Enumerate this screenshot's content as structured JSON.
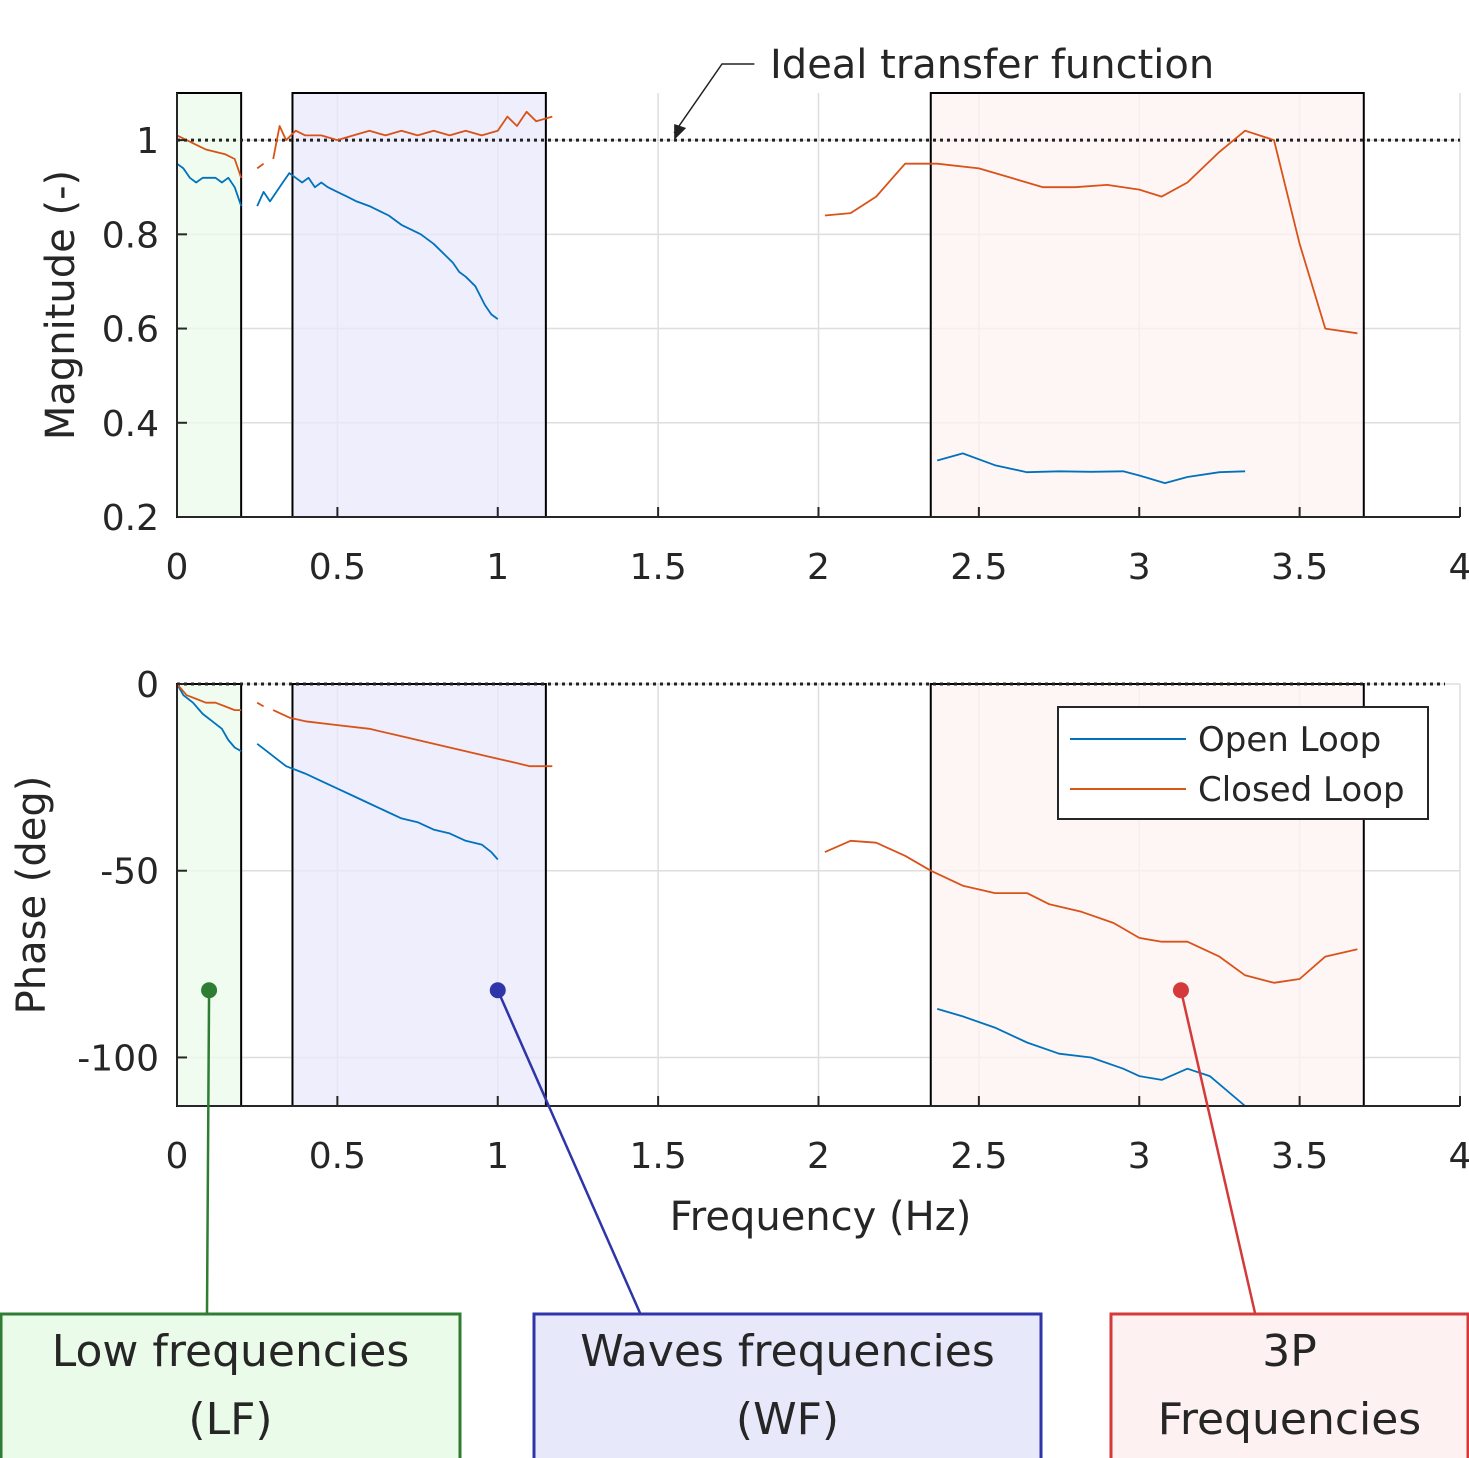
{
  "chart_data": [
    {
      "type": "line",
      "ylabel": "Magnitude (-)",
      "xlim": [
        0,
        4
      ],
      "ylim": [
        0.2,
        1.1
      ],
      "xticks": [
        "0",
        "0.5",
        "1",
        "1.5",
        "2",
        "2.5",
        "3",
        "3.5",
        "4"
      ],
      "yticks": [
        "0.2",
        "0.4",
        "0.6",
        "0.8",
        "1"
      ],
      "grid": true,
      "reference_line": {
        "y": 1,
        "label": "Ideal transfer function"
      },
      "series": [
        {
          "name": "Open Loop",
          "color": "#0072BD",
          "segments": [
            [
              [
                0.0,
                0.95
              ],
              [
                0.02,
                0.94
              ],
              [
                0.04,
                0.92
              ],
              [
                0.06,
                0.91
              ],
              [
                0.08,
                0.92
              ],
              [
                0.1,
                0.92
              ],
              [
                0.12,
                0.92
              ],
              [
                0.14,
                0.91
              ],
              [
                0.16,
                0.92
              ],
              [
                0.18,
                0.9
              ],
              [
                0.2,
                0.86
              ]
            ],
            [
              [
                0.25,
                0.86
              ],
              [
                0.27,
                0.89
              ],
              [
                0.29,
                0.87
              ],
              [
                0.31,
                0.89
              ],
              [
                0.33,
                0.91
              ],
              [
                0.35,
                0.93
              ],
              [
                0.37,
                0.92
              ],
              [
                0.39,
                0.91
              ],
              [
                0.41,
                0.92
              ],
              [
                0.43,
                0.9
              ],
              [
                0.45,
                0.91
              ],
              [
                0.47,
                0.9
              ],
              [
                0.5,
                0.89
              ],
              [
                0.53,
                0.88
              ],
              [
                0.56,
                0.87
              ],
              [
                0.6,
                0.86
              ],
              [
                0.63,
                0.85
              ],
              [
                0.66,
                0.84
              ],
              [
                0.7,
                0.82
              ],
              [
                0.73,
                0.81
              ],
              [
                0.76,
                0.8
              ],
              [
                0.8,
                0.78
              ],
              [
                0.83,
                0.76
              ],
              [
                0.86,
                0.74
              ],
              [
                0.88,
                0.72
              ],
              [
                0.9,
                0.71
              ],
              [
                0.93,
                0.69
              ],
              [
                0.96,
                0.65
              ],
              [
                0.98,
                0.63
              ],
              [
                1.0,
                0.62
              ]
            ],
            [
              [
                2.37,
                0.32
              ],
              [
                2.45,
                0.335
              ],
              [
                2.55,
                0.31
              ],
              [
                2.65,
                0.295
              ],
              [
                2.75,
                0.297
              ],
              [
                2.85,
                0.296
              ],
              [
                2.95,
                0.297
              ],
              [
                3.0,
                0.288
              ],
              [
                3.08,
                0.272
              ],
              [
                3.15,
                0.285
              ],
              [
                3.25,
                0.295
              ],
              [
                3.33,
                0.297
              ]
            ]
          ]
        },
        {
          "name": "Closed Loop",
          "color": "#D95319",
          "segments": [
            [
              [
                0.0,
                1.01
              ],
              [
                0.03,
                1.0
              ],
              [
                0.06,
                0.99
              ],
              [
                0.09,
                0.98
              ],
              [
                0.12,
                0.975
              ],
              [
                0.15,
                0.97
              ],
              [
                0.18,
                0.96
              ],
              [
                0.2,
                0.92
              ]
            ],
            [
              [
                0.25,
                0.94
              ],
              [
                0.27,
                0.95
              ]
            ],
            [
              [
                0.3,
                0.96
              ],
              [
                0.32,
                1.03
              ],
              [
                0.34,
                1.0
              ],
              [
                0.37,
                1.02
              ],
              [
                0.4,
                1.01
              ],
              [
                0.45,
                1.01
              ],
              [
                0.5,
                1.0
              ],
              [
                0.55,
                1.01
              ],
              [
                0.6,
                1.02
              ],
              [
                0.65,
                1.01
              ],
              [
                0.7,
                1.02
              ],
              [
                0.75,
                1.01
              ],
              [
                0.8,
                1.02
              ],
              [
                0.85,
                1.01
              ],
              [
                0.9,
                1.02
              ],
              [
                0.95,
                1.01
              ],
              [
                1.0,
                1.02
              ],
              [
                1.03,
                1.05
              ],
              [
                1.06,
                1.03
              ],
              [
                1.09,
                1.06
              ],
              [
                1.12,
                1.04
              ],
              [
                1.17,
                1.05
              ]
            ],
            [
              [
                2.02,
                0.84
              ],
              [
                2.1,
                0.845
              ],
              [
                2.18,
                0.88
              ],
              [
                2.27,
                0.95
              ],
              [
                2.37,
                0.95
              ],
              [
                2.5,
                0.94
              ],
              [
                2.6,
                0.92
              ],
              [
                2.7,
                0.9
              ],
              [
                2.8,
                0.9
              ],
              [
                2.9,
                0.905
              ],
              [
                3.0,
                0.895
              ],
              [
                3.07,
                0.88
              ],
              [
                3.15,
                0.91
              ],
              [
                3.25,
                0.975
              ],
              [
                3.33,
                1.02
              ],
              [
                3.42,
                1.0
              ],
              [
                3.5,
                0.78
              ],
              [
                3.58,
                0.6
              ],
              [
                3.68,
                0.59
              ]
            ]
          ]
        }
      ]
    },
    {
      "type": "line",
      "ylabel": "Phase (deg)",
      "xlabel": "Frequency (Hz)",
      "xlim": [
        0,
        4
      ],
      "ylim": [
        -113,
        0
      ],
      "xticks": [
        "0",
        "0.5",
        "1",
        "1.5",
        "2",
        "2.5",
        "3",
        "3.5",
        "4"
      ],
      "yticks": [
        "-100",
        "-50",
        "0"
      ],
      "grid": true,
      "reference_line": {
        "y": 0
      },
      "legend": {
        "placement": "top-right",
        "entries": [
          "Open Loop",
          "Closed Loop"
        ]
      },
      "series": [
        {
          "name": "Open Loop",
          "color": "#0072BD",
          "segments": [
            [
              [
                0.0,
                0
              ],
              [
                0.02,
                -3
              ],
              [
                0.05,
                -5
              ],
              [
                0.08,
                -8
              ],
              [
                0.11,
                -10
              ],
              [
                0.14,
                -12
              ],
              [
                0.16,
                -15
              ],
              [
                0.18,
                -17
              ],
              [
                0.2,
                -18
              ]
            ],
            [
              [
                0.25,
                -16
              ],
              [
                0.28,
                -18
              ],
              [
                0.31,
                -20
              ],
              [
                0.34,
                -22
              ],
              [
                0.37,
                -23
              ],
              [
                0.4,
                -24
              ],
              [
                0.45,
                -26
              ],
              [
                0.5,
                -28
              ],
              [
                0.55,
                -30
              ],
              [
                0.6,
                -32
              ],
              [
                0.65,
                -34
              ],
              [
                0.7,
                -36
              ],
              [
                0.75,
                -37
              ],
              [
                0.8,
                -39
              ],
              [
                0.85,
                -40
              ],
              [
                0.9,
                -42
              ],
              [
                0.95,
                -43
              ],
              [
                0.98,
                -45
              ],
              [
                1.0,
                -47
              ]
            ],
            [
              [
                2.37,
                -87
              ],
              [
                2.45,
                -89
              ],
              [
                2.55,
                -92
              ],
              [
                2.65,
                -96
              ],
              [
                2.75,
                -99
              ],
              [
                2.85,
                -100
              ],
              [
                2.95,
                -103
              ],
              [
                3.0,
                -105
              ],
              [
                3.07,
                -106
              ],
              [
                3.15,
                -103
              ],
              [
                3.22,
                -105
              ],
              [
                3.33,
                -113
              ]
            ]
          ]
        },
        {
          "name": "Closed Loop",
          "color": "#D95319",
          "segments": [
            [
              [
                0.0,
                0
              ],
              [
                0.03,
                -3
              ],
              [
                0.06,
                -4
              ],
              [
                0.09,
                -5
              ],
              [
                0.12,
                -5
              ],
              [
                0.15,
                -6
              ],
              [
                0.18,
                -7
              ],
              [
                0.2,
                -7
              ]
            ],
            [
              [
                0.25,
                -5
              ],
              [
                0.27,
                -6
              ]
            ],
            [
              [
                0.3,
                -7
              ],
              [
                0.35,
                -9
              ],
              [
                0.4,
                -10
              ],
              [
                0.5,
                -11
              ],
              [
                0.6,
                -12
              ],
              [
                0.7,
                -14
              ],
              [
                0.8,
                -16
              ],
              [
                0.9,
                -18
              ],
              [
                0.95,
                -19
              ],
              [
                1.0,
                -20
              ],
              [
                1.05,
                -21
              ],
              [
                1.1,
                -22
              ],
              [
                1.17,
                -22
              ]
            ],
            [
              [
                2.02,
                -45
              ],
              [
                2.1,
                -42
              ],
              [
                2.18,
                -42.5
              ],
              [
                2.27,
                -46
              ],
              [
                2.35,
                -50
              ],
              [
                2.45,
                -54
              ],
              [
                2.55,
                -56
              ],
              [
                2.65,
                -56
              ],
              [
                2.72,
                -59
              ],
              [
                2.82,
                -61
              ],
              [
                2.92,
                -64
              ],
              [
                3.0,
                -68
              ],
              [
                3.07,
                -69
              ],
              [
                3.15,
                -69
              ],
              [
                3.25,
                -73
              ],
              [
                3.33,
                -78
              ],
              [
                3.42,
                -80
              ],
              [
                3.5,
                -79
              ],
              [
                3.58,
                -73
              ],
              [
                3.68,
                -71
              ]
            ]
          ]
        }
      ]
    }
  ],
  "regions": [
    {
      "label": "Low frequencies\n(LF)",
      "x0": 0,
      "x1": 0.2,
      "fill": "#EAFBEA",
      "stroke": "#2E7D32"
    },
    {
      "label": "Waves frequencies\n(WF)",
      "x0": 0.36,
      "x1": 1.15,
      "fill": "#E8E8FB",
      "stroke": "#2E35A8"
    },
    {
      "label": "3P\nFrequencies",
      "x0": 2.35,
      "x1": 3.7,
      "fill": "#FDF1F1",
      "stroke": "#D43A3A"
    }
  ],
  "colors": {
    "open_loop": "#0072BD",
    "closed_loop": "#D95319"
  }
}
